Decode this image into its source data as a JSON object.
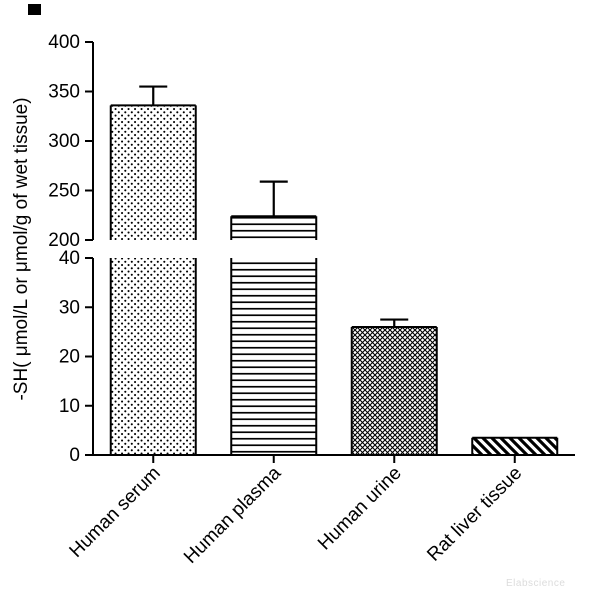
{
  "chart_data": {
    "type": "bar",
    "title": "",
    "ylabel": "-SH( μmol/L or μmol/g of wet tissue)",
    "xlabel": "",
    "categories": [
      "Human serum",
      "Human plasma",
      "Human urine",
      "Rat liver tissue"
    ],
    "values": [
      336,
      224,
      26,
      3.5
    ],
    "errors_plus": [
      19,
      35,
      1.5,
      0
    ],
    "bar_patterns": [
      "dots",
      "horizontal-lines",
      "diagonal-crosshatch",
      "diagonal-lines"
    ],
    "axis_break": true,
    "upper_axis": {
      "range": [
        200,
        400
      ],
      "ticks": [
        200,
        250,
        300,
        350,
        400
      ]
    },
    "lower_axis": {
      "range": [
        0,
        40
      ],
      "ticks": [
        0,
        10,
        20,
        30,
        40
      ]
    },
    "grid": false,
    "legend": "none",
    "bar_color": "#000000",
    "background": "#ffffff",
    "watermark": "Elabscience"
  }
}
